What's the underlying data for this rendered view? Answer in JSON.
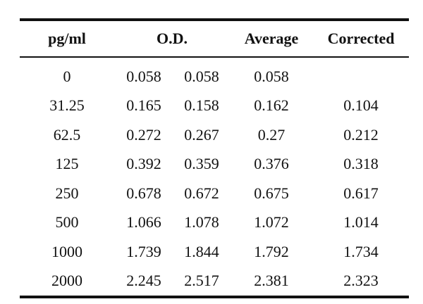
{
  "table": {
    "headers": {
      "concentration": "pg/ml",
      "od": "O.D.",
      "average": "Average",
      "corrected": "Corrected"
    },
    "rows": [
      {
        "concentration": "0",
        "od1": "0.058",
        "od2": "0.058",
        "average": "0.058",
        "corrected": ""
      },
      {
        "concentration": "31.25",
        "od1": "0.165",
        "od2": "0.158",
        "average": "0.162",
        "corrected": "0.104"
      },
      {
        "concentration": "62.5",
        "od1": "0.272",
        "od2": "0.267",
        "average": "0.27",
        "corrected": "0.212"
      },
      {
        "concentration": "125",
        "od1": "0.392",
        "od2": "0.359",
        "average": "0.376",
        "corrected": "0.318"
      },
      {
        "concentration": "250",
        "od1": "0.678",
        "od2": "0.672",
        "average": "0.675",
        "corrected": "0.617"
      },
      {
        "concentration": "500",
        "od1": "1.066",
        "od2": "1.078",
        "average": "1.072",
        "corrected": "1.014"
      },
      {
        "concentration": "1000",
        "od1": "1.739",
        "od2": "1.844",
        "average": "1.792",
        "corrected": "1.734"
      },
      {
        "concentration": "2000",
        "od1": "2.245",
        "od2": "2.517",
        "average": "2.381",
        "corrected": "2.323"
      }
    ]
  }
}
